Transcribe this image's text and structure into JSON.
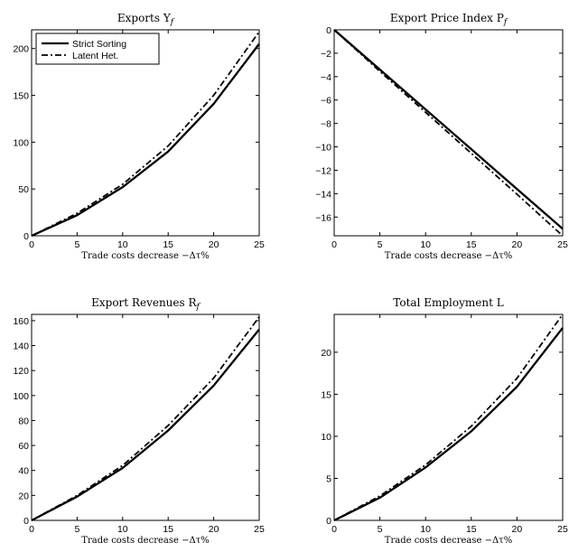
{
  "chart_data": [
    {
      "type": "line",
      "title": "Exports Y",
      "title_sub": "f",
      "xlabel": "Trade costs decrease −Δτ%",
      "xlim": [
        0,
        25
      ],
      "ylim": [
        0,
        220
      ],
      "xticks": [
        0,
        5,
        10,
        15,
        20,
        25
      ],
      "yticks": [
        0,
        50,
        100,
        150,
        200
      ],
      "x": [
        0,
        5,
        10,
        15,
        20,
        25
      ],
      "legend": "top-left",
      "series": [
        {
          "name": "Strict Sorting",
          "style": "solid",
          "values": [
            0,
            22,
            52,
            90,
            141,
            205
          ]
        },
        {
          "name": "Latent Het.",
          "style": "dashdot",
          "values": [
            0,
            24,
            55,
            96,
            150,
            218
          ]
        }
      ]
    },
    {
      "type": "line",
      "title": "Export Price Index P",
      "title_sub": "f",
      "xlabel": "Trade costs decrease −Δτ%",
      "xlim": [
        0,
        25
      ],
      "ylim": [
        -17.6,
        0
      ],
      "xticks": [
        0,
        5,
        10,
        15,
        20,
        25
      ],
      "yticks": [
        0,
        -2,
        -4,
        -6,
        -8,
        -10,
        -12,
        -14,
        -16
      ],
      "x": [
        0,
        5,
        10,
        15,
        20,
        25
      ],
      "series": [
        {
          "name": "Strict Sorting",
          "style": "solid",
          "values": [
            0,
            -3.4,
            -6.8,
            -10.2,
            -13.6,
            -17.0
          ]
        },
        {
          "name": "Latent Het.",
          "style": "dashdot",
          "values": [
            0,
            -3.55,
            -7.05,
            -10.55,
            -14.05,
            -17.6
          ]
        }
      ]
    },
    {
      "type": "line",
      "title": "Export Revenues R",
      "title_sub": "f",
      "xlabel": "Trade costs decrease −Δτ%",
      "xlim": [
        0,
        25
      ],
      "ylim": [
        0,
        165
      ],
      "xticks": [
        0,
        5,
        10,
        15,
        20,
        25
      ],
      "yticks": [
        0,
        20,
        40,
        60,
        80,
        100,
        120,
        140,
        160
      ],
      "x": [
        0,
        5,
        10,
        15,
        20,
        25
      ],
      "series": [
        {
          "name": "Strict Sorting",
          "style": "solid",
          "values": [
            0,
            19,
            42,
            72,
            108,
            153
          ]
        },
        {
          "name": "Latent Het.",
          "style": "dashdot",
          "values": [
            0,
            20,
            44,
            76,
            114,
            163
          ]
        }
      ]
    },
    {
      "type": "line",
      "title": "Total Employment L",
      "title_sub": "",
      "xlabel": "Trade costs decrease −Δτ%",
      "xlim": [
        0,
        25
      ],
      "ylim": [
        0,
        24.5
      ],
      "xticks": [
        0,
        5,
        10,
        15,
        20,
        25
      ],
      "yticks": [
        0,
        5,
        10,
        15,
        20
      ],
      "x": [
        0,
        5,
        10,
        15,
        20,
        25
      ],
      "series": [
        {
          "name": "Strict Sorting",
          "style": "solid",
          "values": [
            0,
            2.7,
            6.3,
            10.6,
            15.9,
            22.9
          ]
        },
        {
          "name": "Latent Het.",
          "style": "dashdot",
          "values": [
            0,
            2.9,
            6.6,
            11.2,
            16.9,
            24.5
          ]
        }
      ]
    }
  ]
}
